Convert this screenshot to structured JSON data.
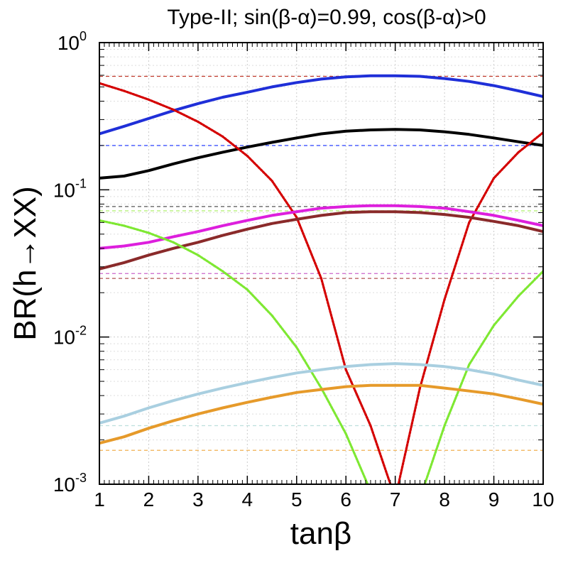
{
  "chart_data": {
    "type": "line",
    "title": "Type-II; sin(β-α)=0.99, cos(β-α)>0",
    "xlabel": "tanβ",
    "ylabel": "BR(h→XX)",
    "x_scale": "linear",
    "y_scale": "log",
    "xlim": [
      1,
      10
    ],
    "ylim": [
      0.001,
      1
    ],
    "grid": true,
    "x_ticks": [
      1,
      2,
      3,
      4,
      5,
      6,
      7,
      8,
      9,
      10
    ],
    "y_ticks": [
      {
        "value": 0.001,
        "base": "10",
        "exp": "-3"
      },
      {
        "value": 0.01,
        "base": "10",
        "exp": "-2"
      },
      {
        "value": 0.1,
        "base": "10",
        "exp": "-1"
      },
      {
        "value": 1,
        "base": "10",
        "exp": "0"
      }
    ],
    "x": [
      1,
      1.5,
      2,
      2.5,
      3,
      3.5,
      4,
      4.5,
      5,
      5.5,
      6,
      6.5,
      7,
      7.5,
      8,
      8.5,
      9,
      9.5,
      10
    ],
    "series": [
      {
        "name": "blue",
        "color": "#1f2fd8",
        "style": "thick",
        "values": [
          0.24,
          0.27,
          0.305,
          0.345,
          0.385,
          0.425,
          0.46,
          0.5,
          0.535,
          0.565,
          0.585,
          0.595,
          0.595,
          0.59,
          0.57,
          0.545,
          0.51,
          0.47,
          0.43
        ]
      },
      {
        "name": "black",
        "color": "#000000",
        "style": "thick",
        "values": [
          0.12,
          0.124,
          0.135,
          0.15,
          0.165,
          0.18,
          0.195,
          0.21,
          0.225,
          0.24,
          0.25,
          0.255,
          0.257,
          0.255,
          0.248,
          0.238,
          0.225,
          0.212,
          0.2
        ]
      },
      {
        "name": "red",
        "color": "#d40000",
        "style": "dotted",
        "values": [
          0.53,
          0.47,
          0.41,
          0.35,
          0.29,
          0.23,
          0.17,
          0.115,
          0.065,
          0.025,
          0.006,
          0.0025,
          0.0008,
          0.0045,
          0.018,
          0.06,
          0.12,
          0.18,
          0.245
        ]
      },
      {
        "name": "magenta",
        "color": "#dd1fdd",
        "style": "thick",
        "values": [
          0.04,
          0.0415,
          0.044,
          0.048,
          0.052,
          0.057,
          0.062,
          0.067,
          0.071,
          0.075,
          0.077,
          0.078,
          0.078,
          0.077,
          0.075,
          0.071,
          0.067,
          0.062,
          0.057
        ]
      },
      {
        "name": "brown",
        "color": "#8a2a2a",
        "style": "thick",
        "values": [
          0.029,
          0.032,
          0.036,
          0.04,
          0.044,
          0.049,
          0.054,
          0.059,
          0.063,
          0.067,
          0.07,
          0.071,
          0.071,
          0.07,
          0.068,
          0.065,
          0.061,
          0.057,
          0.052
        ]
      },
      {
        "name": "green",
        "color": "#7ee832",
        "style": "dotted",
        "values": [
          0.062,
          0.057,
          0.051,
          0.044,
          0.036,
          0.028,
          0.021,
          0.014,
          0.0085,
          0.0045,
          0.0022,
          0.0009,
          0.0004,
          0.0008,
          0.0025,
          0.0065,
          0.012,
          0.019,
          0.028
        ]
      },
      {
        "name": "lightblue",
        "color": "#a9cfe0",
        "style": "thick",
        "values": [
          0.0026,
          0.0029,
          0.0033,
          0.0037,
          0.0041,
          0.0045,
          0.0049,
          0.0053,
          0.0057,
          0.006,
          0.0063,
          0.0065,
          0.0066,
          0.0065,
          0.0063,
          0.006,
          0.0056,
          0.0051,
          0.0047
        ]
      },
      {
        "name": "orange",
        "color": "#e69a2a",
        "style": "thick",
        "values": [
          0.0019,
          0.0021,
          0.0024,
          0.0027,
          0.003,
          0.0033,
          0.0036,
          0.0039,
          0.0042,
          0.0044,
          0.0046,
          0.0047,
          0.0047,
          0.0047,
          0.0045,
          0.0043,
          0.0041,
          0.0038,
          0.0035
        ]
      }
    ],
    "reference_lines": [
      {
        "name": "red-sm",
        "color": "#c0392b",
        "value": 0.59
      },
      {
        "name": "blue-sm",
        "color": "#3f53ff",
        "value": 0.2
      },
      {
        "name": "black-sm",
        "color": "#555555",
        "value": 0.077
      },
      {
        "name": "green-sm",
        "color": "#b6f07a",
        "value": 0.072
      },
      {
        "name": "magenta-sm",
        "color": "#cc66cc",
        "value": 0.027
      },
      {
        "name": "brown-sm",
        "color": "#b05050",
        "value": 0.025
      },
      {
        "name": "lightblue-sm",
        "color": "#bde0dd",
        "value": 0.0025
      },
      {
        "name": "orange-sm",
        "color": "#f0b050",
        "value": 0.0017
      }
    ]
  }
}
